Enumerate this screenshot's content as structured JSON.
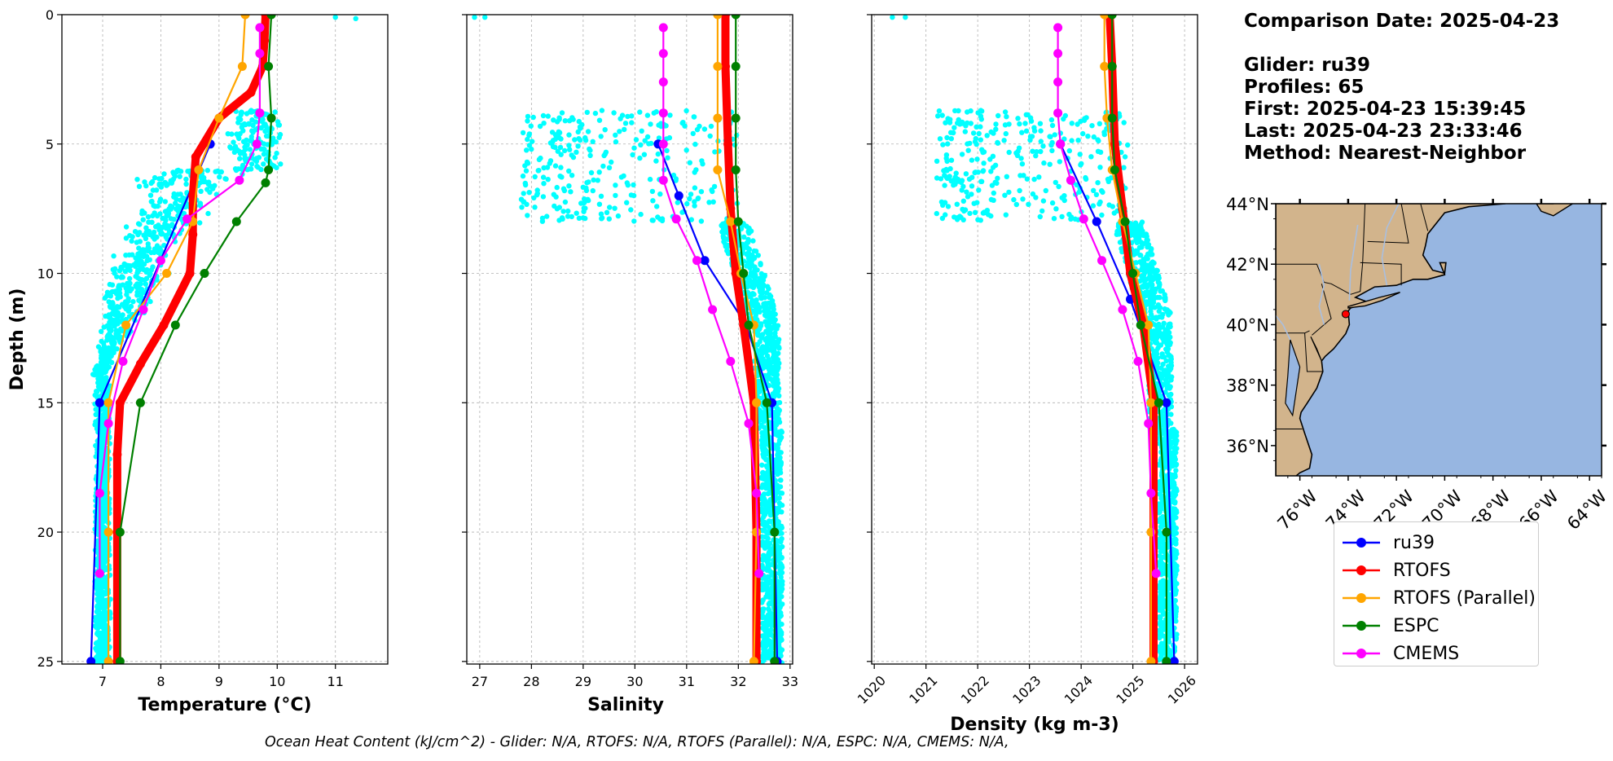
{
  "colors": {
    "ru39": "#0000ff",
    "RTOFS": "#ff0000",
    "RTOFS (Parallel)": "#ffa500",
    "ESPC": "#008000",
    "CMEMS": "#ff00ff",
    "glider_points": "#00ffff",
    "land": "#d2b48c",
    "ocean": "#97b6e1"
  },
  "info": {
    "date": "Comparison Date: 2025-04-23",
    "glider": "Glider: ru39",
    "profiles": "Profiles: 65",
    "first": "First: 2025-04-23 15:39:45",
    "last": "Last: 2025-04-23 23:33:46",
    "method": "Method: Nearest-Neighbor"
  },
  "footer": "Ocean Heat Content (kJ/cm^2) - Glider: N/A,  RTOFS: N/A,  RTOFS (Parallel): N/A,  ESPC: N/A,  CMEMS: N/A,",
  "legend": [
    {
      "name": "ru39",
      "icon": "line-marker"
    },
    {
      "name": "RTOFS",
      "icon": "line-marker"
    },
    {
      "name": "RTOFS (Parallel)",
      "icon": "line-marker"
    },
    {
      "name": "ESPC",
      "icon": "line-marker"
    },
    {
      "name": "CMEMS",
      "icon": "line-marker"
    }
  ],
  "chart_data": [
    {
      "type": "line",
      "xlabel": "Temperature (°C)",
      "ylabel": "Depth (m)",
      "xlim": [
        6.3,
        11.9
      ],
      "ylim": [
        25.1,
        0
      ],
      "xticks": [
        7,
        8,
        9,
        10,
        11
      ],
      "yticks": [
        0,
        5,
        10,
        15,
        20,
        25
      ],
      "grid": true,
      "series": [
        {
          "name": "ru39",
          "x": [
            8.85,
            6.95,
            6.8
          ],
          "y": [
            5,
            15,
            25
          ]
        },
        {
          "name": "RTOFS",
          "x": [
            9.8,
            9.78,
            9.75,
            9.55,
            9.0,
            8.6,
            8.55,
            8.55,
            8.5,
            8.05,
            7.65,
            7.3,
            7.25,
            7.25,
            7.25
          ],
          "y": [
            0,
            1,
            2,
            3,
            4,
            5.5,
            7,
            8.5,
            10,
            12,
            13.5,
            15,
            17,
            20,
            25
          ]
        },
        {
          "name": "RTOFS (Parallel)",
          "x": [
            9.45,
            9.4,
            9.0,
            8.65,
            8.55,
            8.1,
            7.4,
            7.1,
            7.1,
            7.1
          ],
          "y": [
            0,
            2,
            4,
            6,
            8,
            10,
            12,
            15,
            20,
            25
          ]
        },
        {
          "name": "ESPC",
          "x": [
            9.9,
            9.85,
            9.9,
            9.85,
            9.8,
            9.3,
            8.75,
            8.25,
            7.65,
            7.3,
            7.3
          ],
          "y": [
            0,
            2,
            4,
            6,
            6.5,
            8,
            10,
            12,
            15,
            20,
            25
          ]
        },
        {
          "name": "CMEMS",
          "x": [
            9.7,
            9.7,
            9.7,
            9.65,
            9.35,
            8.45,
            8.0,
            7.7,
            7.35,
            7.1,
            6.95,
            6.95
          ],
          "y": [
            0.5,
            1.5,
            3.8,
            5.0,
            6.4,
            7.9,
            9.5,
            11.4,
            13.4,
            15.8,
            18.5,
            21.6
          ]
        }
      ]
    },
    {
      "type": "line",
      "xlabel": "Salinity",
      "xlim": [
        26.75,
        33.05
      ],
      "ylim": [
        25.1,
        0
      ],
      "xticks": [
        27,
        28,
        29,
        30,
        31,
        32,
        33
      ],
      "grid": true,
      "series": [
        {
          "name": "ru39",
          "x": [
            30.45,
            30.85,
            31.35,
            32.15,
            32.65,
            32.75
          ],
          "y": [
            5,
            7,
            9.5,
            12,
            15,
            25
          ]
        },
        {
          "name": "RTOFS",
          "x": [
            31.75,
            31.75,
            31.8,
            31.85,
            31.95,
            32.1,
            32.3,
            32.35,
            32.35
          ],
          "y": [
            0,
            2,
            5,
            7.5,
            10,
            12,
            15,
            20,
            25
          ]
        },
        {
          "name": "RTOFS (Parallel)",
          "x": [
            31.6,
            31.6,
            31.6,
            31.6,
            31.85,
            32.05,
            32.3,
            32.35,
            32.35,
            32.3
          ],
          "y": [
            0,
            2,
            4,
            6,
            8,
            10,
            12,
            15,
            20,
            25
          ]
        },
        {
          "name": "ESPC",
          "x": [
            31.95,
            31.95,
            31.95,
            31.95,
            32.0,
            32.1,
            32.2,
            32.55,
            32.7,
            32.7
          ],
          "y": [
            0,
            2,
            4,
            6,
            8,
            10,
            12,
            15,
            20,
            25
          ]
        },
        {
          "name": "CMEMS",
          "x": [
            30.55,
            30.55,
            30.55,
            30.55,
            30.55,
            30.55,
            30.8,
            31.2,
            31.5,
            31.85,
            32.2,
            32.35,
            32.4
          ],
          "y": [
            0.5,
            1.5,
            2.6,
            3.8,
            5.0,
            6.4,
            7.9,
            9.5,
            11.4,
            13.4,
            15.8,
            18.5,
            21.6
          ]
        }
      ]
    },
    {
      "type": "line",
      "xlabel": "Density (kg m-3)",
      "xlim": [
        1019.95,
        1026.25
      ],
      "ylim": [
        25.1,
        0
      ],
      "xticks": [
        1020,
        1021,
        1022,
        1023,
        1024,
        1025,
        1026
      ],
      "grid": true,
      "series": [
        {
          "name": "ru39",
          "x": [
            1023.6,
            1024.3,
            1024.95,
            1025.65,
            1025.8
          ],
          "y": [
            5,
            8,
            11,
            15,
            25
          ]
        },
        {
          "name": "RTOFS",
          "x": [
            1024.55,
            1024.6,
            1024.65,
            1024.8,
            1024.95,
            1025.2,
            1025.4,
            1025.4,
            1025.4
          ],
          "y": [
            0,
            2,
            5,
            7.5,
            10,
            12,
            15,
            20,
            25
          ]
        },
        {
          "name": "RTOFS (Parallel)",
          "x": [
            1024.45,
            1024.45,
            1024.5,
            1024.6,
            1024.8,
            1025.05,
            1025.3,
            1025.35,
            1025.35,
            1025.35
          ],
          "y": [
            0,
            2,
            4,
            6,
            8,
            10,
            12,
            15,
            20,
            25
          ]
        },
        {
          "name": "ESPC",
          "x": [
            1024.6,
            1024.6,
            1024.6,
            1024.65,
            1024.85,
            1025.0,
            1025.15,
            1025.5,
            1025.65,
            1025.65
          ],
          "y": [
            0,
            2,
            4,
            6,
            8,
            10,
            12,
            15,
            20,
            25
          ]
        },
        {
          "name": "CMEMS",
          "x": [
            1023.55,
            1023.55,
            1023.55,
            1023.55,
            1023.6,
            1023.8,
            1024.05,
            1024.4,
            1024.8,
            1025.1,
            1025.3,
            1025.35,
            1025.45
          ],
          "y": [
            0.5,
            1.5,
            2.6,
            3.8,
            5.0,
            6.4,
            7.9,
            9.5,
            11.4,
            13.4,
            15.8,
            18.5,
            21.6
          ]
        }
      ]
    },
    {
      "type": "map",
      "lon_range": [
        -77,
        -63.5
      ],
      "lat_range": [
        35,
        44
      ],
      "lon_ticks": [
        "76°W",
        "74°W",
        "72°W",
        "70°W",
        "68°W",
        "66°W",
        "64°W"
      ],
      "lat_ticks": [
        "44°N",
        "42°N",
        "40°N",
        "38°N",
        "36°N"
      ],
      "glider_position": {
        "lon": -74.1,
        "lat": 40.35
      }
    }
  ]
}
